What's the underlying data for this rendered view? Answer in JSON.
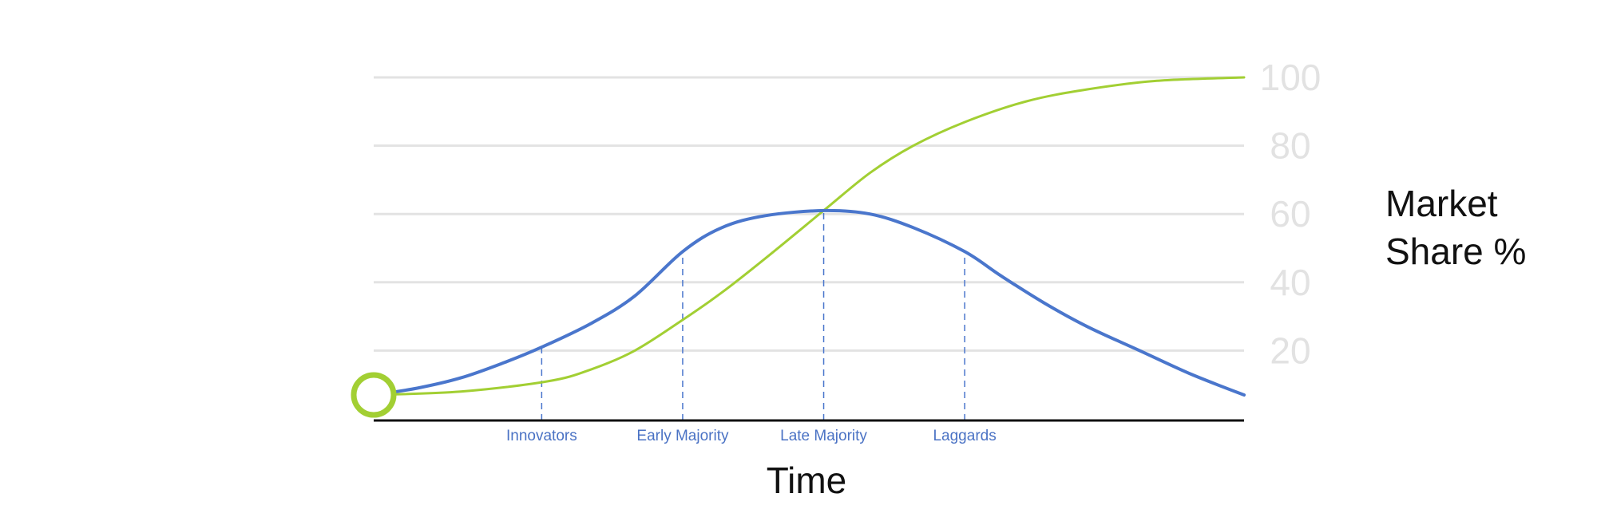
{
  "chart_data": {
    "type": "line",
    "title": "",
    "xlabel": "Time",
    "ylabel_lines": [
      "Market",
      "Share %"
    ],
    "ylim": [
      0,
      100
    ],
    "y_ticks": [
      20,
      40,
      60,
      80,
      100
    ],
    "y_tick_labels": [
      "20",
      "40",
      "60",
      "80",
      "100"
    ],
    "grid": true,
    "y_axis_side": "right",
    "xlim": [
      0,
      100
    ],
    "categories": [
      {
        "label": "Innovators",
        "x": 19.3
      },
      {
        "label": "Early Majority",
        "x": 35.5
      },
      {
        "label": "Late Majority",
        "x": 51.7
      },
      {
        "label": "Laggards",
        "x": 67.9
      }
    ],
    "series": [
      {
        "color": "#4a76cc",
        "x": [
          0,
          5,
          10,
          15,
          19.3,
          25,
          30,
          35.5,
          40,
          45,
          51.7,
          57,
          62,
          67.9,
          72,
          77,
          82,
          88,
          94,
          100
        ],
        "values": [
          7,
          9,
          12,
          16.5,
          21,
          28,
          36,
          49,
          56,
          59.5,
          61,
          60,
          56,
          49,
          42,
          34,
          27,
          20,
          13,
          7
        ]
      },
      {
        "color": "#a2cf33",
        "x": [
          0,
          10,
          20,
          25,
          30,
          35.5,
          40,
          45,
          51.7,
          57,
          62,
          68,
          75,
          82,
          90,
          100
        ],
        "values": [
          7,
          8,
          11,
          14.5,
          20,
          29,
          37,
          47,
          61,
          72,
          80,
          87,
          93,
          96.5,
          99,
          100
        ]
      }
    ],
    "start_marker_color": "#a2cf33",
    "grid_color": "#e3e3e3",
    "axis_color": "#111111",
    "guide_color": "#4a76cc"
  }
}
